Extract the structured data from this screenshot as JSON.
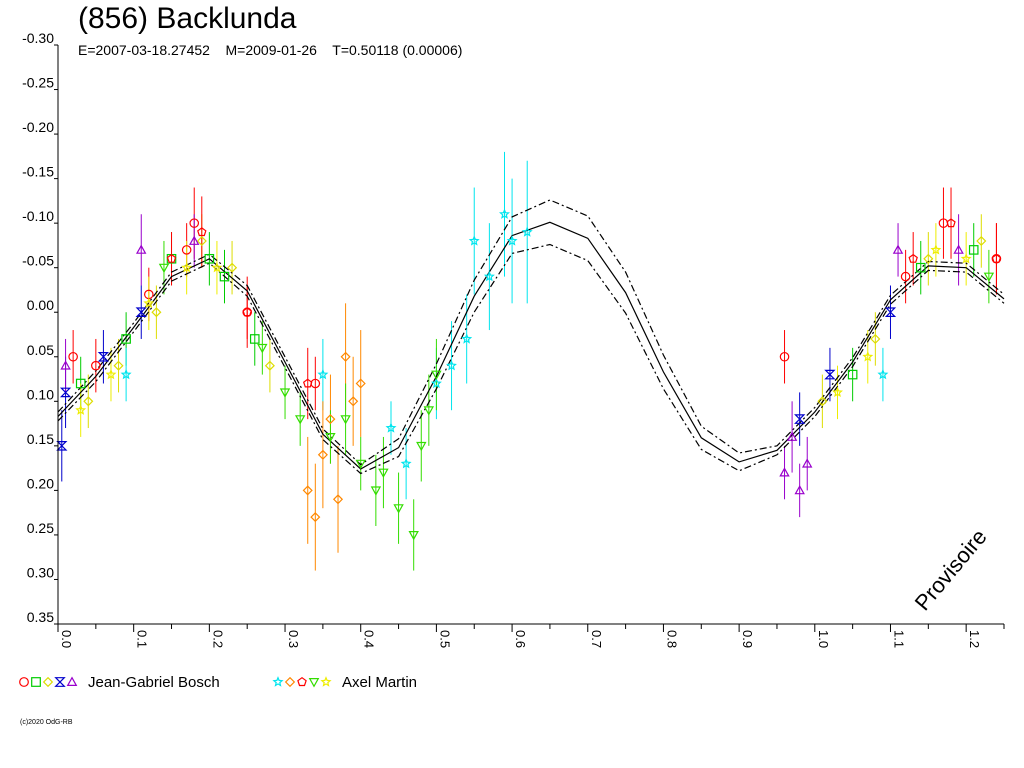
{
  "header": {
    "title": "(856) Backlunda",
    "epoch": "E=2007-03-18.27452",
    "mid": "M=2009-01-26",
    "period": "T=0.50118 (0.00006)"
  },
  "watermark": "Provisoire",
  "copyright": "(c)2020 OdG-RB",
  "legend": [
    {
      "label": "Jean-Gabriel Bosch",
      "symbols": [
        {
          "shape": "circle",
          "color": "#ff0000"
        },
        {
          "shape": "square",
          "color": "#00cc00"
        },
        {
          "shape": "diamond",
          "color": "#dddd00"
        },
        {
          "shape": "hourglass",
          "color": "#0000cc"
        },
        {
          "shape": "triangle",
          "color": "#9900cc"
        }
      ]
    },
    {
      "label": "Axel Martin",
      "symbols": [
        {
          "shape": "star",
          "color": "#00e5ee"
        },
        {
          "shape": "diamond",
          "color": "#ff8800"
        },
        {
          "shape": "pentagon",
          "color": "#ff0000"
        },
        {
          "shape": "triangle-down",
          "color": "#33dd00"
        },
        {
          "shape": "star",
          "color": "#eeee00"
        }
      ]
    }
  ],
  "chart_data": {
    "type": "scatter",
    "xlim": [
      0.0,
      1.25
    ],
    "ylim": [
      0.35,
      -0.3
    ],
    "x_ticks": [
      "0.0",
      "0.1",
      "0.2",
      "0.3",
      "0.4",
      "0.5",
      "0.6",
      "0.7",
      "0.8",
      "0.9",
      "1.0",
      "1.1",
      "1.2"
    ],
    "y_ticks": [
      "-0.30",
      "-0.25",
      "-0.20",
      "-0.15",
      "-0.10",
      "-0.05",
      "0.00",
      "0.05",
      "0.10",
      "0.15",
      "0.20",
      "0.25",
      "0.30",
      "0.35"
    ],
    "curves": [
      {
        "name": "fit",
        "style": "solid",
        "x": [
          0.0,
          0.05,
          0.1,
          0.15,
          0.2,
          0.25,
          0.3,
          0.35,
          0.4,
          0.45,
          0.5,
          0.55,
          0.6,
          0.65,
          0.7,
          0.75,
          0.8,
          0.85,
          0.9,
          0.95,
          1.0,
          1.05,
          1.1,
          1.15,
          1.2,
          1.25
        ],
        "y": [
          0.117,
          0.072,
          0.017,
          -0.04,
          -0.06,
          -0.024,
          0.056,
          0.137,
          0.176,
          0.152,
          0.072,
          -0.018,
          -0.086,
          -0.101,
          -0.083,
          -0.022,
          0.067,
          0.141,
          0.168,
          0.155,
          0.112,
          0.056,
          -0.014,
          -0.052,
          -0.05,
          -0.015
        ]
      },
      {
        "name": "upper",
        "style": "dashdot",
        "x": [
          0.0,
          0.05,
          0.1,
          0.15,
          0.2,
          0.25,
          0.3,
          0.35,
          0.4,
          0.45,
          0.5,
          0.55,
          0.6,
          0.65,
          0.7,
          0.75,
          0.8,
          0.85,
          0.9,
          0.95,
          1.0,
          1.05,
          1.1,
          1.15,
          1.2,
          1.25
        ],
        "y": [
          0.112,
          0.066,
          0.012,
          -0.045,
          -0.065,
          -0.03,
          0.05,
          0.131,
          0.171,
          0.142,
          0.058,
          -0.036,
          -0.107,
          -0.126,
          -0.108,
          -0.045,
          0.048,
          0.128,
          0.158,
          0.15,
          0.107,
          0.051,
          -0.019,
          -0.057,
          -0.055,
          -0.02
        ]
      },
      {
        "name": "lower",
        "style": "dashdot",
        "x": [
          0.0,
          0.05,
          0.1,
          0.15,
          0.2,
          0.25,
          0.3,
          0.35,
          0.4,
          0.45,
          0.5,
          0.55,
          0.6,
          0.65,
          0.7,
          0.75,
          0.8,
          0.85,
          0.9,
          0.95,
          1.0,
          1.05,
          1.1,
          1.15,
          1.2,
          1.25
        ],
        "y": [
          0.122,
          0.078,
          0.022,
          -0.035,
          -0.055,
          -0.018,
          0.062,
          0.143,
          0.181,
          0.162,
          0.086,
          0.0,
          -0.066,
          -0.076,
          -0.058,
          0.001,
          0.086,
          0.154,
          0.178,
          0.16,
          0.117,
          0.061,
          -0.009,
          -0.047,
          -0.045,
          -0.01
        ]
      }
    ],
    "series": [
      {
        "observer": "Jean-Gabriel Bosch",
        "symbol": "circle",
        "color": "#ff0000",
        "points": [
          [
            0.02,
            0.05,
            0.03
          ],
          [
            0.05,
            0.06,
            0.03
          ],
          [
            0.12,
            -0.02,
            0.03
          ],
          [
            0.17,
            -0.07,
            0.03
          ],
          [
            0.18,
            -0.1,
            0.04
          ],
          [
            0.25,
            0.0,
            0.04
          ],
          [
            0.34,
            0.08,
            0.03
          ],
          [
            0.96,
            0.05,
            0.03
          ],
          [
            1.12,
            -0.04,
            0.03
          ],
          [
            1.17,
            -0.1,
            0.04
          ],
          [
            1.24,
            -0.06,
            0.04
          ]
        ]
      },
      {
        "observer": "Jean-Gabriel Bosch",
        "symbol": "square",
        "color": "#00cc00",
        "points": [
          [
            0.03,
            0.08,
            0.03
          ],
          [
            0.09,
            0.03,
            0.03
          ],
          [
            0.15,
            -0.06,
            0.03
          ],
          [
            0.2,
            -0.06,
            0.03
          ],
          [
            0.22,
            -0.04,
            0.03
          ],
          [
            0.26,
            0.03,
            0.03
          ],
          [
            1.05,
            0.07,
            0.03
          ],
          [
            1.14,
            -0.05,
            0.03
          ],
          [
            1.21,
            -0.07,
            0.03
          ]
        ]
      },
      {
        "observer": "Jean-Gabriel Bosch",
        "symbol": "diamond",
        "color": "#dddd00",
        "points": [
          [
            0.04,
            0.1,
            0.03
          ],
          [
            0.08,
            0.06,
            0.03
          ],
          [
            0.13,
            0.0,
            0.03
          ],
          [
            0.19,
            -0.08,
            0.03
          ],
          [
            0.23,
            -0.05,
            0.03
          ],
          [
            0.28,
            0.06,
            0.03
          ],
          [
            1.01,
            0.1,
            0.03
          ],
          [
            1.08,
            0.03,
            0.03
          ],
          [
            1.15,
            -0.06,
            0.03
          ],
          [
            1.22,
            -0.08,
            0.03
          ]
        ]
      },
      {
        "observer": "Jean-Gabriel Bosch",
        "symbol": "hourglass",
        "color": "#0000cc",
        "points": [
          [
            0.01,
            0.09,
            0.04
          ],
          [
            0.005,
            0.15,
            0.04
          ],
          [
            0.06,
            0.05,
            0.03
          ],
          [
            0.11,
            0.0,
            0.03
          ],
          [
            0.98,
            0.12,
            0.03
          ],
          [
            1.02,
            0.07,
            0.03
          ],
          [
            1.1,
            0.0,
            0.03
          ]
        ]
      },
      {
        "observer": "Jean-Gabriel Bosch",
        "symbol": "triangle",
        "color": "#9900cc",
        "points": [
          [
            0.01,
            0.06,
            0.03
          ],
          [
            0.11,
            -0.07,
            0.04
          ],
          [
            0.18,
            -0.08,
            0.03
          ],
          [
            0.96,
            0.18,
            0.03
          ],
          [
            0.97,
            0.14,
            0.04
          ],
          [
            0.98,
            0.2,
            0.03
          ],
          [
            0.99,
            0.17,
            0.03
          ],
          [
            1.11,
            -0.07,
            0.03
          ],
          [
            1.19,
            -0.07,
            0.04
          ]
        ]
      },
      {
        "observer": "Axel Martin",
        "symbol": "star",
        "color": "#00e5ee",
        "points": [
          [
            0.09,
            0.07,
            0.03
          ],
          [
            0.35,
            0.07,
            0.04
          ],
          [
            0.44,
            0.13,
            0.03
          ],
          [
            0.46,
            0.17,
            0.04
          ],
          [
            0.5,
            0.08,
            0.04
          ],
          [
            0.52,
            0.06,
            0.05
          ],
          [
            0.54,
            0.03,
            0.05
          ],
          [
            0.55,
            -0.08,
            0.06
          ],
          [
            0.57,
            -0.04,
            0.06
          ],
          [
            0.59,
            -0.11,
            0.07
          ],
          [
            0.6,
            -0.08,
            0.07
          ],
          [
            0.62,
            -0.09,
            0.08
          ],
          [
            1.09,
            0.07,
            0.03
          ]
        ]
      },
      {
        "observer": "Axel Martin",
        "symbol": "diamond",
        "color": "#ff8800",
        "points": [
          [
            0.33,
            0.2,
            0.06
          ],
          [
            0.34,
            0.23,
            0.06
          ],
          [
            0.35,
            0.16,
            0.06
          ],
          [
            0.37,
            0.21,
            0.06
          ],
          [
            0.38,
            0.05,
            0.06
          ],
          [
            0.39,
            0.1,
            0.05
          ],
          [
            0.4,
            0.08,
            0.06
          ],
          [
            0.36,
            0.12,
            0.05
          ]
        ]
      },
      {
        "observer": "Axel Martin",
        "symbol": "pentagon",
        "color": "#ff0000",
        "points": [
          [
            0.15,
            -0.06,
            0.03
          ],
          [
            0.19,
            -0.09,
            0.04
          ],
          [
            0.25,
            0.0,
            0.03
          ],
          [
            0.33,
            0.08,
            0.04
          ],
          [
            1.13,
            -0.06,
            0.03
          ],
          [
            1.18,
            -0.1,
            0.04
          ],
          [
            1.24,
            -0.06,
            0.04
          ]
        ]
      },
      {
        "observer": "Axel Martin",
        "symbol": "triangle-down",
        "color": "#33dd00",
        "points": [
          [
            0.27,
            0.04,
            0.03
          ],
          [
            0.3,
            0.09,
            0.03
          ],
          [
            0.32,
            0.12,
            0.03
          ],
          [
            0.36,
            0.14,
            0.03
          ],
          [
            0.38,
            0.12,
            0.04
          ],
          [
            0.4,
            0.17,
            0.03
          ],
          [
            0.42,
            0.2,
            0.04
          ],
          [
            0.43,
            0.18,
            0.04
          ],
          [
            0.45,
            0.22,
            0.04
          ],
          [
            0.47,
            0.25,
            0.04
          ],
          [
            0.48,
            0.15,
            0.04
          ],
          [
            0.49,
            0.11,
            0.04
          ],
          [
            0.5,
            0.07,
            0.04
          ],
          [
            0.14,
            -0.05,
            0.03
          ],
          [
            1.23,
            -0.04,
            0.03
          ]
        ]
      },
      {
        "observer": "Axel Martin",
        "symbol": "star",
        "color": "#eeee00",
        "points": [
          [
            0.03,
            0.11,
            0.03
          ],
          [
            0.07,
            0.07,
            0.03
          ],
          [
            0.12,
            -0.01,
            0.03
          ],
          [
            0.17,
            -0.05,
            0.03
          ],
          [
            0.21,
            -0.05,
            0.03
          ],
          [
            1.03,
            0.09,
            0.03
          ],
          [
            1.07,
            0.05,
            0.03
          ],
          [
            1.16,
            -0.07,
            0.03
          ],
          [
            1.2,
            -0.06,
            0.03
          ]
        ]
      }
    ]
  }
}
